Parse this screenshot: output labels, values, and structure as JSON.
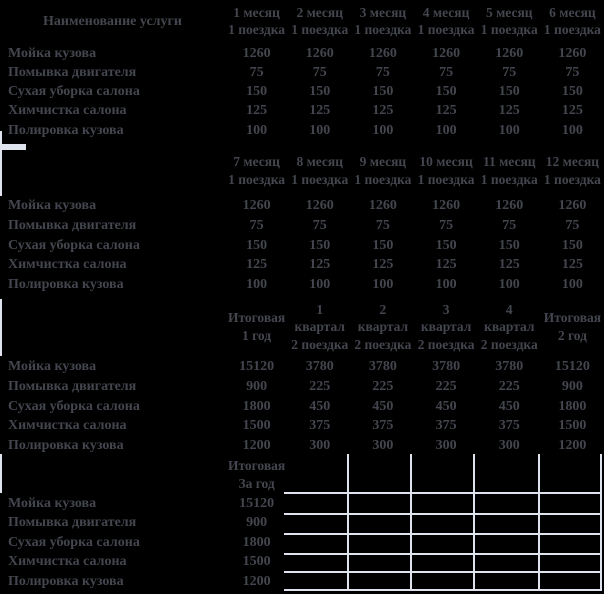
{
  "colors": {
    "background": "#000000",
    "text": "#43464e",
    "grid": "#dfe3ee"
  },
  "table_caption_col": "Наименование услуги",
  "services": [
    "Мойка кузова",
    "Помывка двигателя",
    "Сухая уборка салона",
    "Химчистка салона",
    "Полировка кузова"
  ],
  "monthly_prices": [
    1260,
    75,
    150,
    125,
    100
  ],
  "block1": {
    "months": [
      "1 месяц",
      "2 месяц",
      "3 месяц",
      "4 месяц",
      "5 месяц",
      "6 месяц"
    ],
    "subtitle": "1 поездка"
  },
  "block2": {
    "months": [
      "7 месяц",
      "8 месяц",
      "9 месяц",
      "10 месяц",
      "11 месяц",
      "12 месяц"
    ],
    "subtitle": "1 поездка"
  },
  "block3": {
    "first_col": {
      "line1": "Итоговая",
      "line2": "1 год"
    },
    "last_col": {
      "line1": "Итоговая",
      "line2": "2 год"
    },
    "quarter_numbers": [
      "1",
      "2",
      "3",
      "4"
    ],
    "quarter_word": "квартал",
    "quarter_subtitle": "2 поездка",
    "first_values": [
      15120,
      900,
      1800,
      1500,
      1200
    ],
    "quarter_values": [
      3780,
      225,
      450,
      375,
      300
    ],
    "last_values": [
      15120,
      900,
      1800,
      1500,
      1200
    ]
  },
  "block4": {
    "header_line1": "Итоговая",
    "header_line2": "За год",
    "values": [
      15120,
      900,
      1800,
      1500,
      1200
    ]
  }
}
